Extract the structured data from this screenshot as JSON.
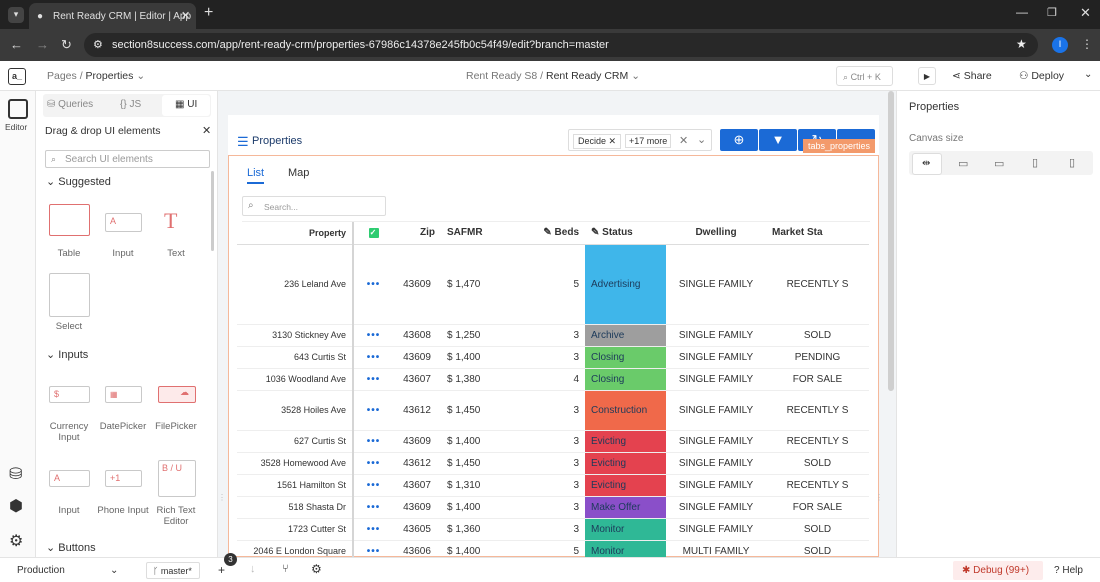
{
  "browser": {
    "tab_title": "Rent Ready CRM | Editor | App",
    "url": "section8success.com/app/rent-ready-crm/properties-67986c14378e245fb0c54f49/edit?branch=master",
    "profile_initial": "I"
  },
  "topbar": {
    "logo": "a_",
    "pages_label": "Pages",
    "current_page": "Properties",
    "workspace": "Rent Ready S8",
    "app_name": "Rent Ready CRM",
    "search_shortcut": "Ctrl + K",
    "share_label": "Share",
    "deploy_label": "Deploy"
  },
  "leftrail": {
    "editor_label": "Editor"
  },
  "leftpanel": {
    "tabs": [
      "Queries",
      "JS",
      "UI"
    ],
    "header": "Drag & drop UI elements",
    "search_placeholder": "Search UI elements",
    "sections": {
      "suggested": "Suggested",
      "inputs": "Inputs",
      "buttons": "Buttons"
    },
    "suggested_items": [
      "Table",
      "Input",
      "Text",
      "Select"
    ],
    "input_items": [
      "Currency Input",
      "DatePicker",
      "FilePicker",
      "Input",
      "Phone Input",
      "Rich Text Editor"
    ]
  },
  "app": {
    "title": "Properties",
    "filter_chip": "Decide",
    "more_chip": "+17 more",
    "widget_tag": "tabs_properties",
    "tabs": [
      "List",
      "Map"
    ],
    "search_placeholder": "Search...",
    "columns": {
      "property": "Property",
      "zip": "Zip",
      "safmr": "SAFMR",
      "beds": "Beds",
      "status": "Status",
      "dwelling": "Dwelling",
      "market": "Market Sta"
    },
    "rows": [
      {
        "property": "236 Leland Ave",
        "zip": "43609",
        "safmr": "$ 1,470",
        "beds": "5",
        "status": "Advertising",
        "dwelling": "SINGLE FAMILY",
        "market": "RECENTLY S"
      },
      {
        "property": "3130 Stickney Ave",
        "zip": "43608",
        "safmr": "$ 1,250",
        "beds": "3",
        "status": "Archive",
        "dwelling": "SINGLE FAMILY",
        "market": "SOLD"
      },
      {
        "property": "643 Curtis St",
        "zip": "43609",
        "safmr": "$ 1,400",
        "beds": "3",
        "status": "Closing",
        "dwelling": "SINGLE FAMILY",
        "market": "PENDING"
      },
      {
        "property": "1036 Woodland Ave",
        "zip": "43607",
        "safmr": "$ 1,380",
        "beds": "4",
        "status": "Closing",
        "dwelling": "SINGLE FAMILY",
        "market": "FOR SALE"
      },
      {
        "property": "3528 Hoiles Ave",
        "zip": "43612",
        "safmr": "$ 1,450",
        "beds": "3",
        "status": "Construction",
        "dwelling": "SINGLE FAMILY",
        "market": "RECENTLY S"
      },
      {
        "property": "627 Curtis St",
        "zip": "43609",
        "safmr": "$ 1,400",
        "beds": "3",
        "status": "Evicting",
        "dwelling": "SINGLE FAMILY",
        "market": "RECENTLY S"
      },
      {
        "property": "3528 Homewood Ave",
        "zip": "43612",
        "safmr": "$ 1,450",
        "beds": "3",
        "status": "Evicting",
        "dwelling": "SINGLE FAMILY",
        "market": "SOLD"
      },
      {
        "property": "1561 Hamilton St",
        "zip": "43607",
        "safmr": "$ 1,310",
        "beds": "3",
        "status": "Evicting",
        "dwelling": "SINGLE FAMILY",
        "market": "RECENTLY S"
      },
      {
        "property": "518 Shasta Dr",
        "zip": "43609",
        "safmr": "$ 1,400",
        "beds": "3",
        "status": "Make Offer",
        "dwelling": "SINGLE FAMILY",
        "market": "FOR SALE"
      },
      {
        "property": "1723 Cutter St",
        "zip": "43605",
        "safmr": "$ 1,360",
        "beds": "3",
        "status": "Monitor",
        "dwelling": "SINGLE FAMILY",
        "market": "SOLD"
      },
      {
        "property": "2046 E London Square",
        "zip": "43606",
        "safmr": "$ 1,400",
        "beds": "5",
        "status": "Monitor",
        "dwelling": "MULTI FAMILY",
        "market": "SOLD"
      }
    ],
    "status_colors": {
      "Advertising": "#3fb6ea",
      "Archive": "#9e9e9e",
      "Closing": "#6acb6a",
      "Construction": "#f0694a",
      "Evicting": "#e4424f",
      "Make Offer": "#8a4fc9",
      "Monitor": "#2fb896"
    }
  },
  "rightpanel": {
    "title": "Properties",
    "canvas_size_label": "Canvas size"
  },
  "bottombar": {
    "environment": "Production",
    "branch": "master*",
    "badge_count": "3",
    "debug_label": "Debug (99+)",
    "help_label": "Help"
  }
}
